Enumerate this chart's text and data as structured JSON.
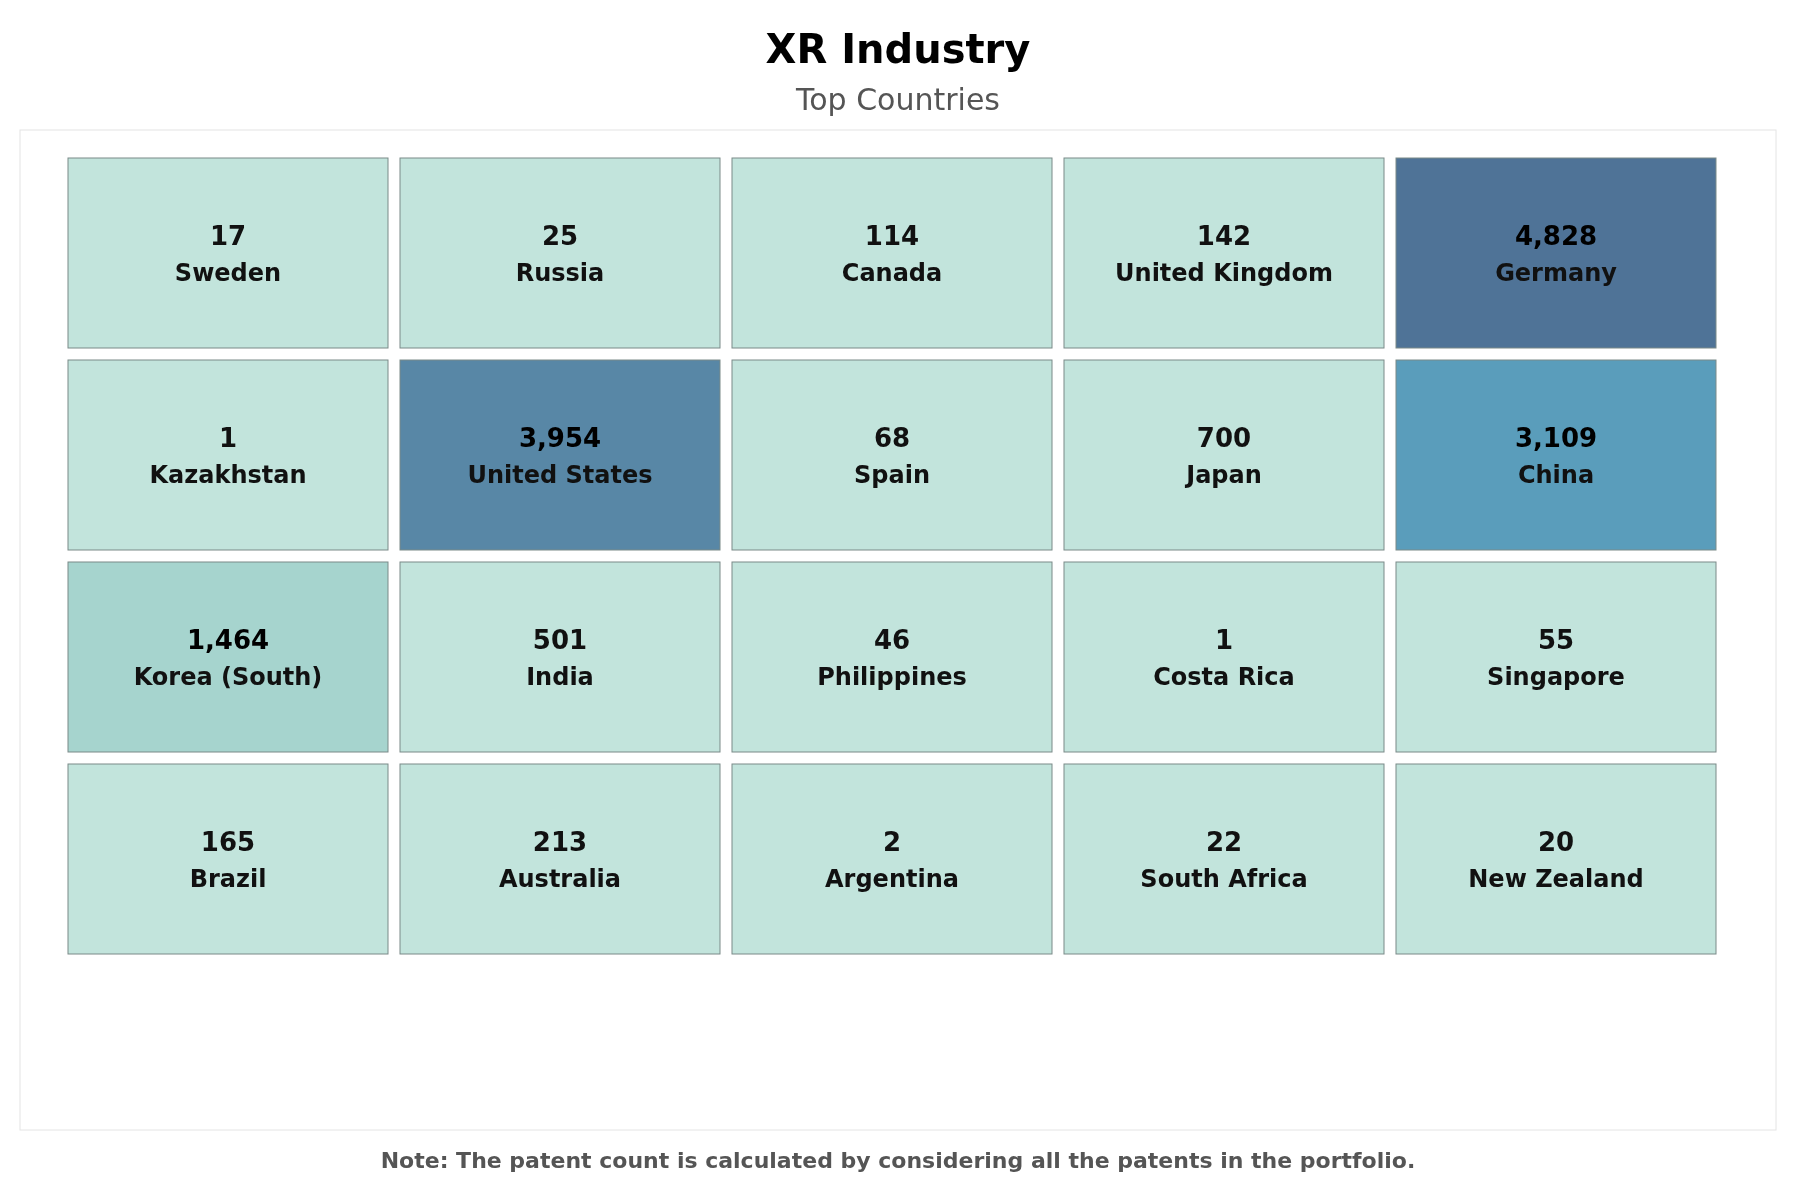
{
  "chart_data": {
    "type": "other",
    "title": "XR Industry",
    "subtitle": "Top Countries",
    "categories": [
      "Sweden",
      "Russia",
      "Canada",
      "United Kingdom",
      "Germany",
      "Kazakhstan",
      "United States",
      "Spain",
      "Japan",
      "China",
      "Korea (South)",
      "India",
      "Philippines",
      "Costa Rica",
      "Singapore",
      "Brazil",
      "Australia",
      "Argentina",
      "South Africa",
      "New Zealand"
    ],
    "values": [
      17,
      25,
      114,
      142,
      4828,
      1,
      3954,
      68,
      700,
      3109,
      1464,
      501,
      46,
      1,
      55,
      165,
      213,
      2,
      22,
      20
    ],
    "value_labels": [
      "17",
      "25",
      "114",
      "142",
      "4,828",
      "1",
      "3,954",
      "68",
      "700",
      "3,109",
      "1,464",
      "501",
      "46",
      "1",
      "55",
      "165",
      "213",
      "2",
      "22",
      "20"
    ],
    "colors": [
      "#c2e4dc",
      "#c2e4dc",
      "#c2e4dc",
      "#c2e4dc",
      "#4f7397",
      "#c2e4dc",
      "#5887a6",
      "#c2e4dc",
      "#c2e4dc",
      "#5a9dbb",
      "#a6d4ce",
      "#c2e4dc",
      "#c2e4dc",
      "#c2e4dc",
      "#c2e4dc",
      "#c2e4dc",
      "#c2e4dc",
      "#c2e4dc",
      "#c2e4dc",
      "#c2e4dc"
    ],
    "annotations": [
      "Note: The patent count is calculated by considering all the patents in the portfolio."
    ]
  }
}
